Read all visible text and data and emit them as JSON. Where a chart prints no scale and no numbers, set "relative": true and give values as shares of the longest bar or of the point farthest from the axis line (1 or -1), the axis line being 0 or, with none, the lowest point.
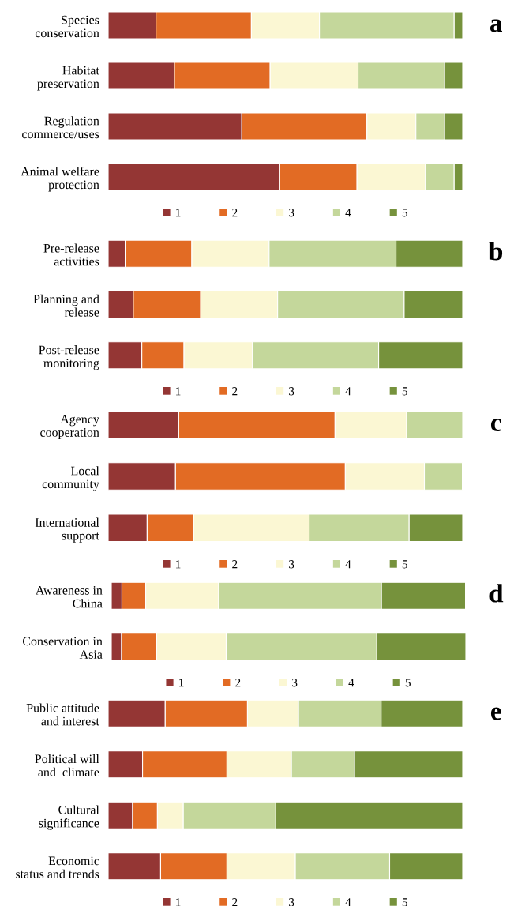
{
  "chart_data": [
    {
      "type": "bar",
      "orientation": "horizontal",
      "stacked": true,
      "relative": true,
      "annotations": [
        "a"
      ],
      "legend": "bottom",
      "categories": [
        "Species\nconservation",
        "Habitat\npreservation",
        "Regulation\ncommerce/uses",
        "Animal welfare\nprotection"
      ],
      "series": [
        {
          "name": "1",
          "color": "#943634",
          "values": [
            0.135,
            0.187,
            0.377,
            0.484
          ]
        },
        {
          "name": "2",
          "color": "#e26b24",
          "values": [
            0.269,
            0.27,
            0.353,
            0.218
          ]
        },
        {
          "name": "3",
          "color": "#fbf7d3",
          "values": [
            0.192,
            0.248,
            0.138,
            0.193
          ]
        },
        {
          "name": "4",
          "color": "#c4d79b",
          "values": [
            0.38,
            0.244,
            0.081,
            0.081
          ]
        },
        {
          "name": "5",
          "color": "#76923c",
          "values": [
            0.024,
            0.051,
            0.051,
            0.024
          ]
        }
      ]
    },
    {
      "type": "bar",
      "orientation": "horizontal",
      "stacked": true,
      "relative": true,
      "annotations": [
        "b"
      ],
      "legend": "bottom",
      "categories": [
        "Pre-release\nactivities",
        "Planning and\nrelease",
        "Post-release\nmonitoring"
      ],
      "series": [
        {
          "name": "1",
          "color": "#943634",
          "values": [
            0.048,
            0.071,
            0.095
          ]
        },
        {
          "name": "2",
          "color": "#e26b24",
          "values": [
            0.188,
            0.19,
            0.119
          ]
        },
        {
          "name": "3",
          "color": "#fbf7d3",
          "values": [
            0.218,
            0.217,
            0.193
          ]
        },
        {
          "name": "4",
          "color": "#c4d79b",
          "values": [
            0.358,
            0.357,
            0.356
          ]
        },
        {
          "name": "5",
          "color": "#76923c",
          "values": [
            0.188,
            0.165,
            0.237
          ]
        }
      ]
    },
    {
      "type": "bar",
      "orientation": "horizontal",
      "stacked": true,
      "relative": true,
      "annotations": [
        "c"
      ],
      "legend": "bottom",
      "categories": [
        "Agency\ncooperation",
        "Local\ncommunity",
        "International\nsupport"
      ],
      "series": [
        {
          "name": "1",
          "color": "#943634",
          "values": [
            0.199,
            0.19,
            0.11
          ]
        },
        {
          "name": "2",
          "color": "#e26b24",
          "values": [
            0.441,
            0.479,
            0.131
          ]
        },
        {
          "name": "3",
          "color": "#fbf7d3",
          "values": [
            0.202,
            0.223,
            0.326
          ]
        },
        {
          "name": "4",
          "color": "#c4d79b",
          "values": [
            0.158,
            0.107,
            0.282
          ]
        },
        {
          "name": "5",
          "color": "#76923c",
          "values": [
            0,
            0,
            0.151
          ]
        }
      ]
    },
    {
      "type": "bar",
      "orientation": "horizontal",
      "stacked": true,
      "relative": true,
      "annotations": [
        "d"
      ],
      "legend": "bottom",
      "categories": [
        "Awareness in\nChina",
        "Conservation in\nAsia"
      ],
      "series": [
        {
          "name": "1",
          "color": "#943634",
          "values": [
            0.03,
            0.029
          ]
        },
        {
          "name": "2",
          "color": "#e26b24",
          "values": [
            0.067,
            0.099
          ]
        },
        {
          "name": "3",
          "color": "#fbf7d3",
          "values": [
            0.206,
            0.196
          ]
        },
        {
          "name": "4",
          "color": "#c4d79b",
          "values": [
            0.459,
            0.425
          ]
        },
        {
          "name": "5",
          "color": "#76923c",
          "values": [
            0.237,
            0.251
          ]
        }
      ]
    },
    {
      "type": "bar",
      "orientation": "horizontal",
      "stacked": true,
      "relative": true,
      "annotations": [
        "e"
      ],
      "legend": "bottom",
      "categories": [
        "Public attitude\nand interest",
        "Political will\nand  climate",
        "Cultural\nsignificance",
        "Economic\nstatus and trends"
      ],
      "series": [
        {
          "name": "1",
          "color": "#943634",
          "values": [
            0.161,
            0.097,
            0.069,
            0.148
          ]
        },
        {
          "name": "2",
          "color": "#e26b24",
          "values": [
            0.232,
            0.238,
            0.07,
            0.187
          ]
        },
        {
          "name": "3",
          "color": "#fbf7d3",
          "values": [
            0.144,
            0.182,
            0.073,
            0.193
          ]
        },
        {
          "name": "4",
          "color": "#c4d79b",
          "values": [
            0.233,
            0.178,
            0.261,
            0.266
          ]
        },
        {
          "name": "5",
          "color": "#76923c",
          "values": [
            0.23,
            0.305,
            0.527,
            0.206
          ]
        }
      ]
    }
  ]
}
